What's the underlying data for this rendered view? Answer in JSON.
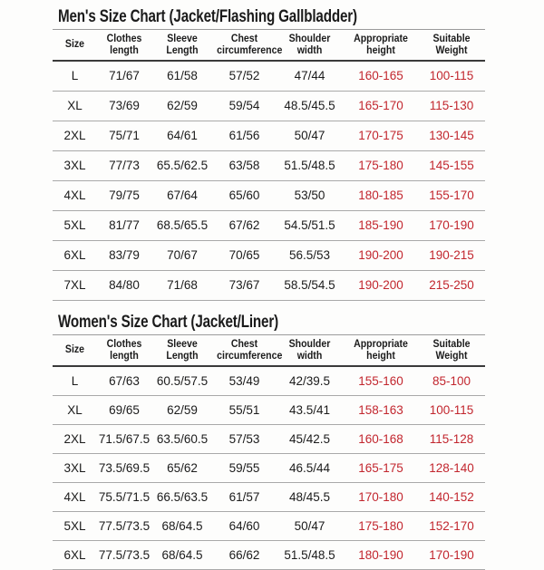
{
  "theme": {
    "background": "#fdfdfc",
    "text_color": "#1b1b1b",
    "accent_red": "#c2262e",
    "row_line_color": "#a9a9a9",
    "header_top_line_color": "#9b9b9b",
    "header_underline_color": "#3a3a3a"
  },
  "tables": [
    {
      "id": "mens",
      "title": "Men's Size Chart (Jacket/Flashing Gallbladder)",
      "columns": [
        {
          "id": "size",
          "line1": "Size",
          "line2": ""
        },
        {
          "id": "clothes-length",
          "line1": "Clothes",
          "line2": "length"
        },
        {
          "id": "sleeve-length",
          "line1": "Sleeve",
          "line2": "Length"
        },
        {
          "id": "chest-circumference",
          "line1": "Chest",
          "line2": "circumference"
        },
        {
          "id": "shoulder-width",
          "line1": "Shoulder",
          "line2": "width"
        },
        {
          "id": "appropriate-height",
          "line1": "Appropriate",
          "line2": "height"
        },
        {
          "id": "suitable-weight",
          "line1": "Suitable",
          "line2": "Weight"
        }
      ],
      "red_columns": [
        5,
        6
      ],
      "rows": [
        [
          "L",
          "71/67",
          "61/58",
          "57/52",
          "47/44",
          "160-165",
          "100-115"
        ],
        [
          "XL",
          "73/69",
          "62/59",
          "59/54",
          "48.5/45.5",
          "165-170",
          "115-130"
        ],
        [
          "2XL",
          "75/71",
          "64/61",
          "61/56",
          "50/47",
          "170-175",
          "130-145"
        ],
        [
          "3XL",
          "77/73",
          "65.5/62.5",
          "63/58",
          "51.5/48.5",
          "175-180",
          "145-155"
        ],
        [
          "4XL",
          "79/75",
          "67/64",
          "65/60",
          "53/50",
          "180-185",
          "155-170"
        ],
        [
          "5XL",
          "81/77",
          "68.5/65.5",
          "67/62",
          "54.5/51.5",
          "185-190",
          "170-190"
        ],
        [
          "6XL",
          "83/79",
          "70/67",
          "70/65",
          "56.5/53",
          "190-200",
          "190-215"
        ],
        [
          "7XL",
          "84/80",
          "71/68",
          "73/67",
          "58.5/54.5",
          "190-200",
          "215-250"
        ]
      ]
    },
    {
      "id": "womens",
      "title": "Women's Size Chart (Jacket/Liner)",
      "columns": [
        {
          "id": "size",
          "line1": "Size",
          "line2": ""
        },
        {
          "id": "clothes-length",
          "line1": "Clothes",
          "line2": "length"
        },
        {
          "id": "sleeve-length",
          "line1": "Sleeve",
          "line2": "Length"
        },
        {
          "id": "chest-circumference",
          "line1": "Chest",
          "line2": "circumference"
        },
        {
          "id": "shoulder-width",
          "line1": "Shoulder",
          "line2": "width"
        },
        {
          "id": "appropriate-height",
          "line1": "Appropriate",
          "line2": "height"
        },
        {
          "id": "suitable-weight",
          "line1": "Suitable",
          "line2": "Weight"
        }
      ],
      "red_columns": [
        5,
        6
      ],
      "rows": [
        [
          "L",
          "67/63",
          "60.5/57.5",
          "53/49",
          "42/39.5",
          "155-160",
          "85-100"
        ],
        [
          "XL",
          "69/65",
          "62/59",
          "55/51",
          "43.5/41",
          "158-163",
          "100-115"
        ],
        [
          "2XL",
          "71.5/67.5",
          "63.5/60.5",
          "57/53",
          "45/42.5",
          "160-168",
          "115-128"
        ],
        [
          "3XL",
          "73.5/69.5",
          "65/62",
          "59/55",
          "46.5/44",
          "165-175",
          "128-140"
        ],
        [
          "4XL",
          "75.5/71.5",
          "66.5/63.5",
          "61/57",
          "48/45.5",
          "170-180",
          "140-152"
        ],
        [
          "5XL",
          "77.5/73.5",
          "68/64.5",
          "64/60",
          "50/47",
          "175-180",
          "152-170"
        ],
        [
          "6XL",
          "77.5/73.5",
          "68/64.5",
          "66/62",
          "51.5/48.5",
          "180-190",
          "170-190"
        ]
      ]
    }
  ]
}
